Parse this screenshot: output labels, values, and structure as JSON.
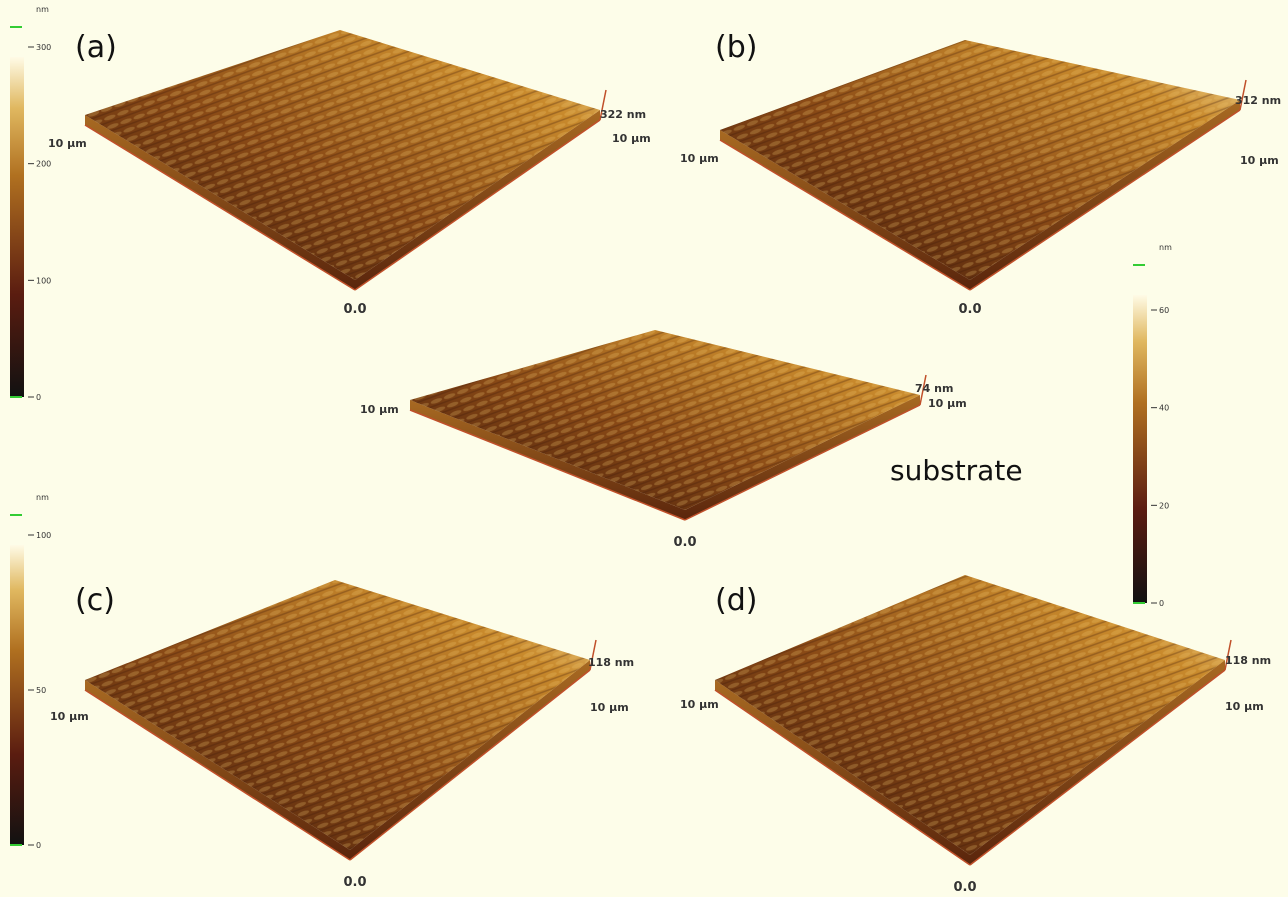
{
  "panels": [
    {
      "label": "(a)",
      "height_label": "322 nm",
      "right_label": "10 µm",
      "left_label": "10 µm",
      "origin_label": "0.0"
    },
    {
      "label": "(b)",
      "height_label": "312 nm",
      "right_label": "10 µm",
      "left_label": "10 µm",
      "origin_label": "0.0"
    },
    {
      "label": "substrate",
      "height_label": "74 nm",
      "right_label": "10 µm",
      "left_label": "10 µm",
      "origin_label": "0.0"
    },
    {
      "label": "(c)",
      "height_label": "118 nm",
      "right_label": "10 µm",
      "left_label": "10 µm",
      "origin_label": "0.0"
    },
    {
      "label": "(d)",
      "height_label": "118 nm",
      "right_label": "10 µm",
      "left_label": "10 µm",
      "origin_label": "0.0"
    }
  ],
  "colorbars": [
    {
      "unit": "nm",
      "ticks": [
        "300",
        "200",
        "100",
        "0"
      ]
    },
    {
      "unit": "nm",
      "ticks": [
        "100",
        "50",
        "0"
      ]
    },
    {
      "unit": "nm",
      "ticks": [
        "60",
        "40",
        "20",
        "0"
      ]
    }
  ]
}
